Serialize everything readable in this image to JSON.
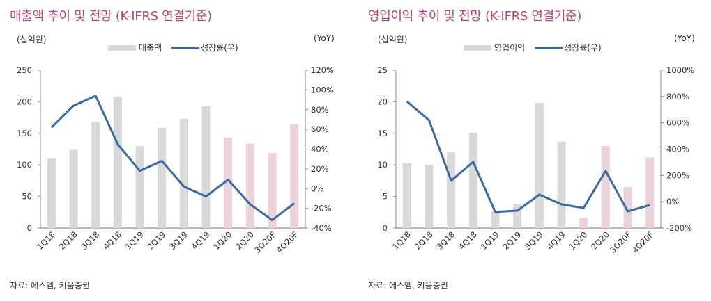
{
  "colors": {
    "title": "#b5467a",
    "bar_actual": "#d9d9d9",
    "bar_forecast": "#ead3dd",
    "line": "#3a6aa0",
    "axis": "#8c8c8c"
  },
  "chart_data": [
    {
      "type": "bar",
      "title": "매출액 추이 및 전망 (K-IFRS 연결기준)",
      "ylabel": "(십억원)",
      "y2label": "(YoY)",
      "legend_placement": "top-center",
      "categories": [
        "1Q18",
        "2Q18",
        "3Q18",
        "4Q18",
        "1Q19",
        "2Q19",
        "3Q19",
        "4Q19",
        "1Q20",
        "2Q20",
        "3Q20F",
        "4Q20F"
      ],
      "forecast_from_index": 8,
      "ylim": [
        0,
        250
      ],
      "yticks": [
        0,
        50,
        100,
        150,
        200,
        250
      ],
      "ytick_labels": [
        "0",
        "50",
        "100",
        "150",
        "200",
        "250"
      ],
      "y2lim": [
        -40,
        120
      ],
      "y2ticks": [
        -40,
        -20,
        0,
        20,
        40,
        60,
        80,
        100,
        120
      ],
      "y2tick_labels": [
        "-40%",
        "-20%",
        "0%",
        "20%",
        "40%",
        "60%",
        "80%",
        "100%",
        "120%"
      ],
      "series": [
        {
          "name": "매출액",
          "kind": "bar",
          "axis": "left",
          "values": [
            110,
            124,
            168,
            208,
            130,
            159,
            173,
            193,
            143,
            134,
            119,
            164
          ]
        },
        {
          "name": "성장률(우)",
          "kind": "line",
          "axis": "right",
          "values": [
            62,
            84,
            94,
            45,
            18,
            28,
            2,
            -8,
            9,
            -16,
            -32,
            -15
          ]
        }
      ],
      "source": "자료: 에스엠, 키움증권"
    },
    {
      "type": "bar",
      "title": "영업이익 추이 및 전망 (K-IFRS 연결기준)",
      "ylabel": "(십억원)",
      "y2label": "(YoY)",
      "legend_placement": "top-center",
      "categories": [
        "1Q18",
        "2Q18",
        "3Q18",
        "4Q18",
        "1Q19",
        "2Q19",
        "3Q19",
        "4Q19",
        "1Q20",
        "2Q20",
        "3Q20F",
        "4Q20F"
      ],
      "forecast_from_index": 8,
      "ylim": [
        0,
        25
      ],
      "yticks": [
        0,
        5,
        10,
        15,
        20,
        25
      ],
      "ytick_labels": [
        "0",
        "5",
        "10",
        "15",
        "20",
        "25"
      ],
      "y2lim": [
        -200,
        1000
      ],
      "y2ticks": [
        -200,
        0,
        200,
        400,
        600,
        800,
        1000
      ],
      "y2tick_labels": [
        "-200%",
        "0%",
        "200%",
        "400%",
        "600%",
        "800%",
        "1000%"
      ],
      "series": [
        {
          "name": "영업이익",
          "kind": "bar",
          "axis": "left",
          "values": [
            10.3,
            10.0,
            12.0,
            15.1,
            2.7,
            3.8,
            19.8,
            13.7,
            1.6,
            13.0,
            6.5,
            11.2
          ]
        },
        {
          "name": "성장률(우)",
          "kind": "line",
          "axis": "right",
          "values": [
            762,
            620,
            160,
            302,
            -78,
            -68,
            54,
            -20,
            -47,
            234,
            -73,
            -25
          ]
        }
      ],
      "source": "자료: 에스엠, 키움증권"
    }
  ]
}
